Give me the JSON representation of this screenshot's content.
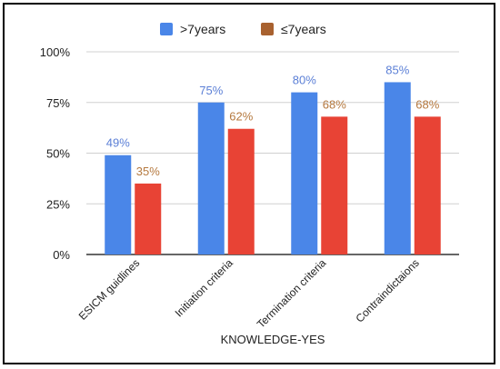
{
  "chart_data": {
    "type": "bar",
    "title": "",
    "xlabel": "KNOWLEDGE-YES",
    "ylabel": "",
    "ylim": [
      0,
      100
    ],
    "yticks": [
      "0%",
      "25%",
      "50%",
      "75%",
      "100%"
    ],
    "ytick_values": [
      0,
      25,
      50,
      75,
      100
    ],
    "grid": true,
    "legend_position": "top",
    "categories": [
      "ESICM guidlines",
      "Initiation criteria",
      "Termination criteria",
      "Contraindictaions"
    ],
    "series": [
      {
        "name": ">7years",
        "color": "#4a86e8",
        "label_color": "#5b7fd6",
        "values": [
          49,
          75,
          80,
          85
        ],
        "labels": [
          "49%",
          "75%",
          "80%",
          "85%"
        ]
      },
      {
        "name": "≤7years",
        "color": "#e84335",
        "label_color": "#b5793f",
        "legend_color": "#a8612f",
        "values": [
          35,
          62,
          68,
          68
        ],
        "labels": [
          "35%",
          "62%",
          "68%",
          "68%"
        ]
      }
    ]
  }
}
